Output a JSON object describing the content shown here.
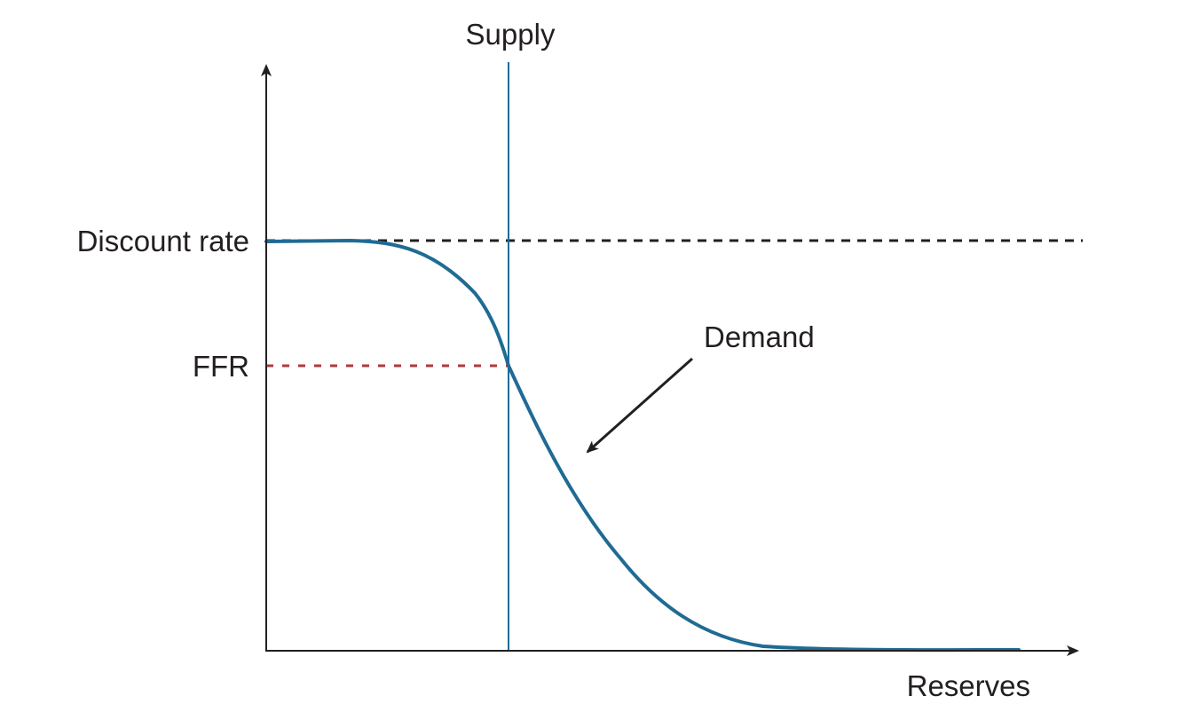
{
  "labels": {
    "supply": "Supply",
    "discount_rate": "Discount rate",
    "ffr": "FFR",
    "demand": "Demand",
    "reserves": "Reserves"
  },
  "colors": {
    "axis": "#231f20",
    "demand_curve": "#1f6b94",
    "supply_line": "#1f6b94",
    "discount_rate_line": "#231f20",
    "ffr_line": "#b23a3a"
  }
}
